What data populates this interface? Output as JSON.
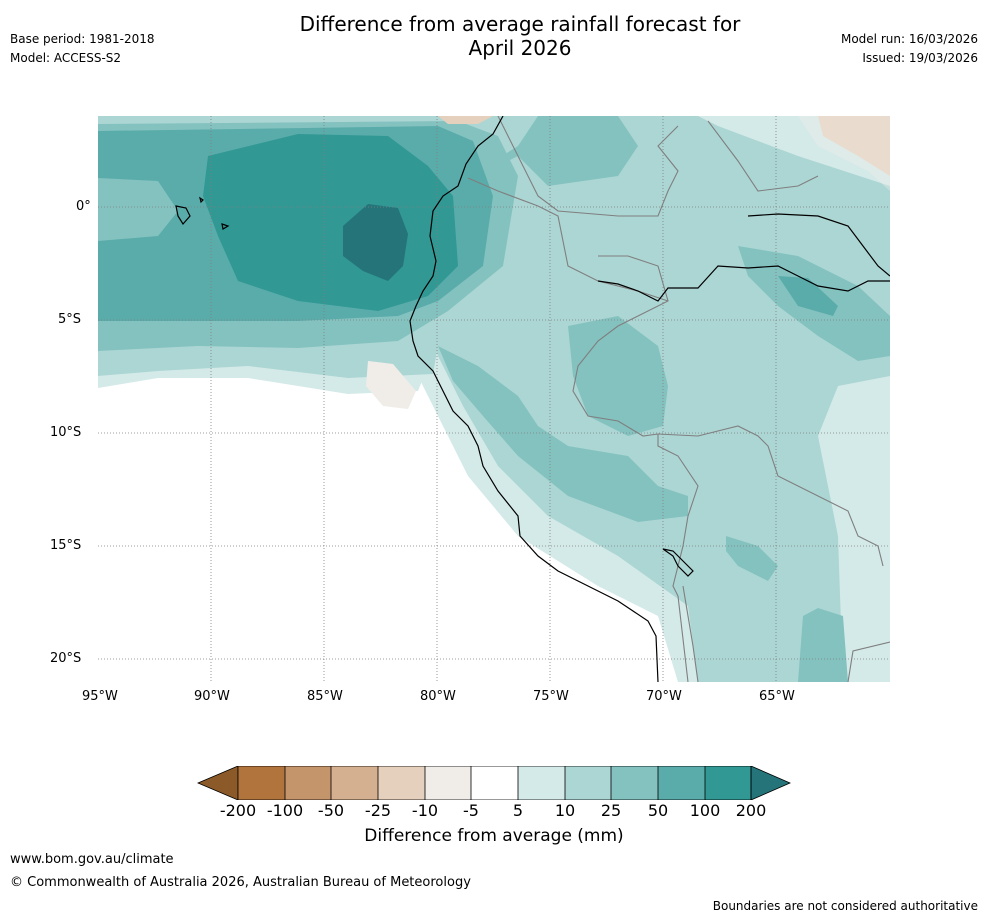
{
  "header": {
    "title_line1": "Difference from average rainfall forecast for",
    "title_line2": "April 2026",
    "base_period": "Base period: 1981-2018",
    "model": "Model: ACCESS-S2",
    "model_run": "Model run: 16/03/2026",
    "issued": "Issued: 19/03/2026"
  },
  "map": {
    "lat_labels": [
      "0°",
      "5°S",
      "10°S",
      "15°S",
      "20°S"
    ],
    "lon_labels": [
      "95°W",
      "90°W",
      "85°W",
      "80°W",
      "75°W",
      "70°W",
      "65°W"
    ],
    "colors": {
      "dry200": "#8c5a28",
      "dry100": "#b0743c",
      "dry50": "#c4946a",
      "dry25": "#d4b090",
      "dry10": "#e4d0bc",
      "dry5": "#f0ede8",
      "neutral": "#ffffff",
      "wet5": "#d4eae8",
      "wet10": "#acd6d4",
      "wet25": "#84c2c0",
      "wet50": "#5aacaa",
      "wet100": "#319894",
      "wet200": "#24747a",
      "coast": "#000000",
      "border": "#7f7f7f",
      "grid": "#7f7f7f"
    }
  },
  "colorbar": {
    "ticks": [
      "-200",
      "-100",
      "-50",
      "-25",
      "-10",
      "-5",
      "5",
      "10",
      "25",
      "50",
      "100",
      "200"
    ],
    "label": "Difference from average (mm)"
  },
  "footer": {
    "website": "www.bom.gov.au/climate",
    "copyright": "© Commonwealth of Australia 2026, Australian Bureau of Meteorology",
    "disclaimer": "Boundaries are not considered authoritative"
  }
}
